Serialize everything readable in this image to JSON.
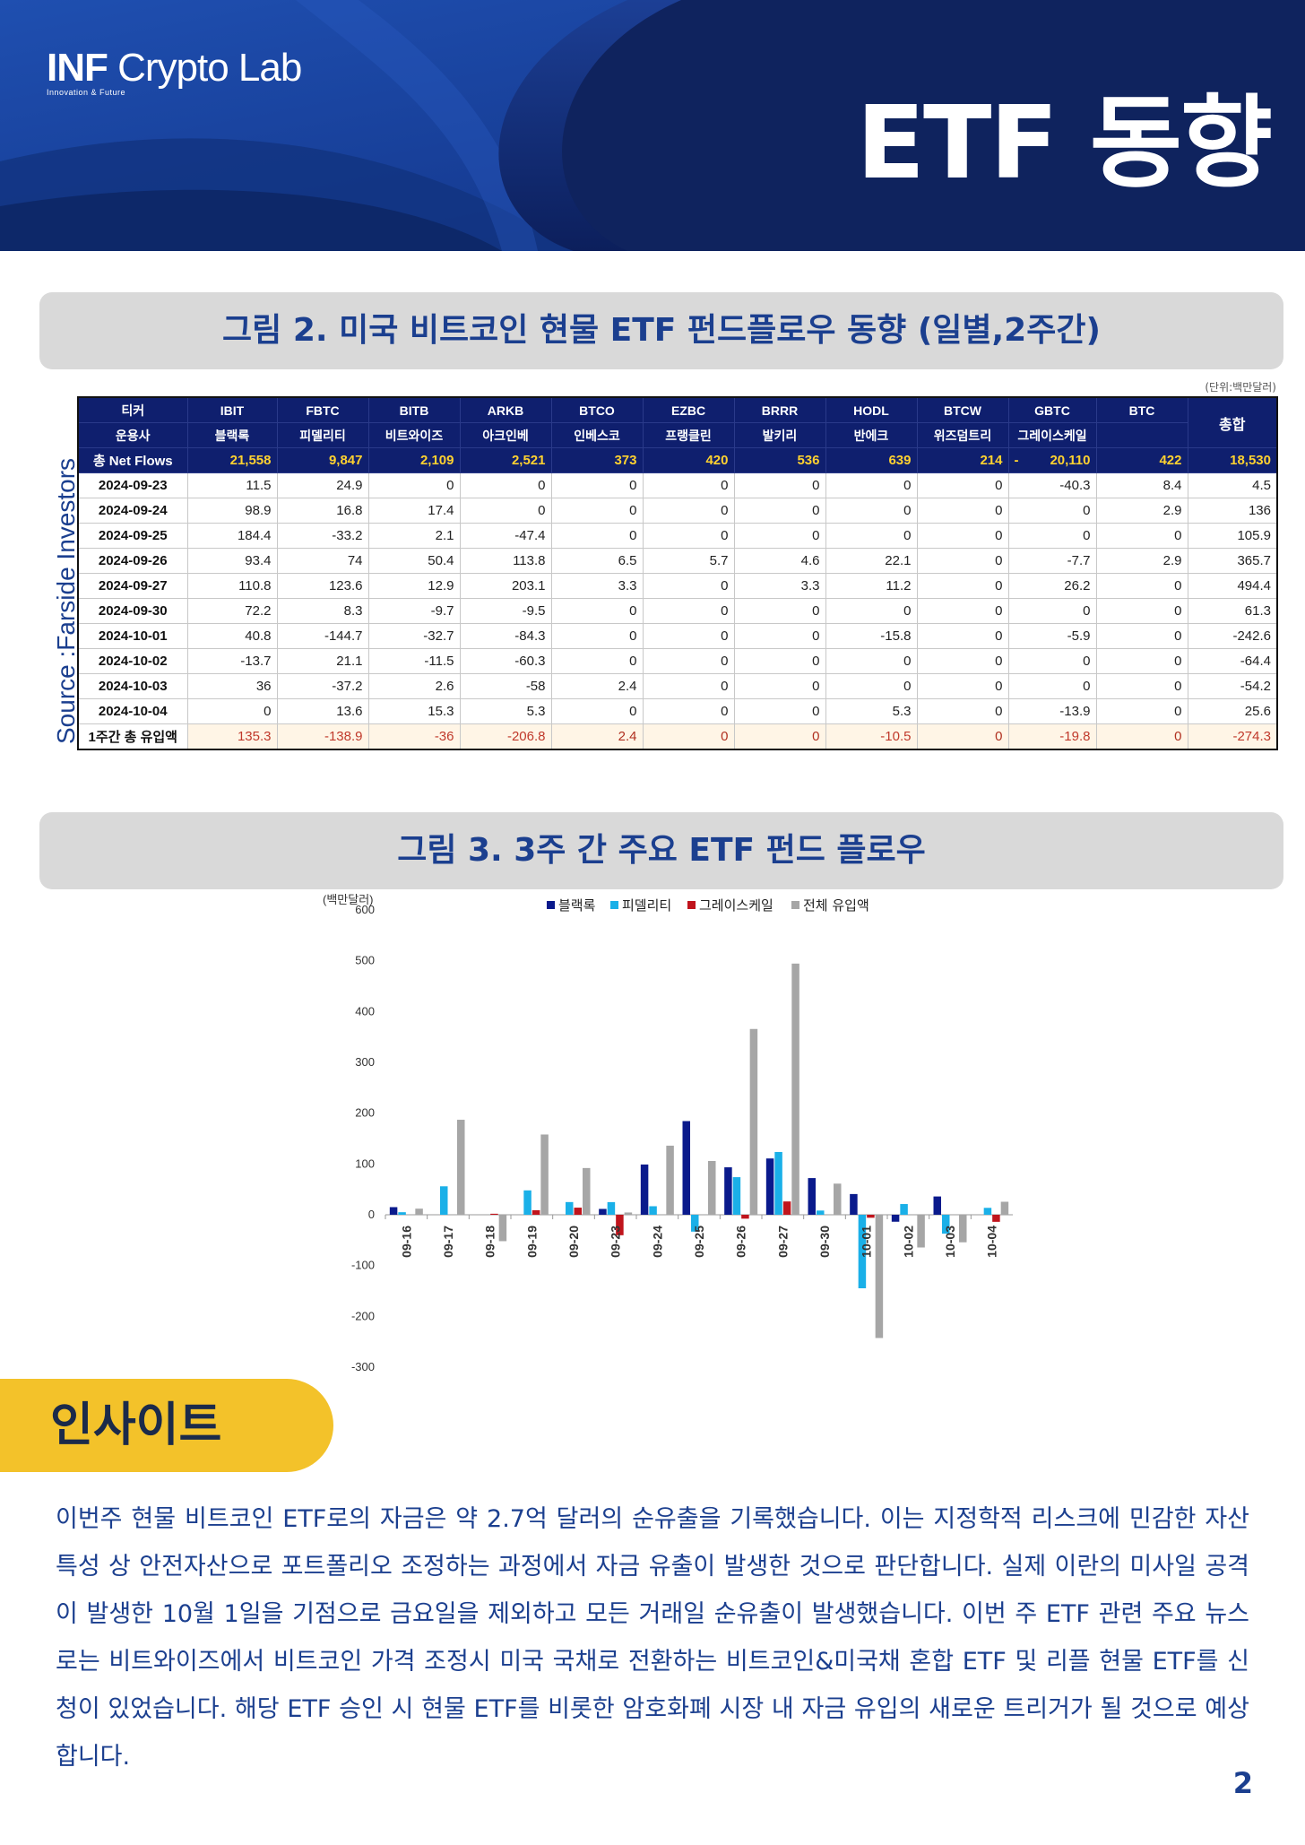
{
  "header": {
    "logo_main_a": "INF",
    "logo_main_b": " Crypto Lab",
    "logo_sub": "Innovation & Future",
    "title": "ETF 동향"
  },
  "figure2": {
    "caption": "그림 2.  미국 비트코인 현물 ETF 펀드플로우 동향 (일별,2주간)",
    "unit_note": "(단위:백만달러)",
    "source": "Source :Farside Investors",
    "ticker_label": "티커",
    "manager_label": "운용사",
    "net_flows_label": "총 Net Flows",
    "total_label": "총합",
    "week_label": "1주간 총 유입액",
    "tickers": [
      "IBIT",
      "FBTC",
      "BITB",
      "ARKB",
      "BTCO",
      "EZBC",
      "BRRR",
      "HODL",
      "BTCW",
      "GBTC",
      "BTC"
    ],
    "managers": [
      "블랙록",
      "피델리티",
      "비트와이즈",
      "아크인베",
      "인베스코",
      "프랭클린",
      "발키리",
      "반에크",
      "위즈덤트리",
      "그레이스케일",
      ""
    ],
    "net_flows": [
      "21,558",
      "9,847",
      "2,109",
      "2,521",
      "373",
      "420",
      "536",
      "639",
      "214",
      "-",
      "20,110",
      "422",
      "18,530"
    ],
    "rows": [
      {
        "date": "2024-09-23",
        "values": [
          "11.5",
          "24.9",
          "0",
          "0",
          "0",
          "0",
          "0",
          "0",
          "0",
          "-40.3",
          "8.4",
          "4.5"
        ]
      },
      {
        "date": "2024-09-24",
        "values": [
          "98.9",
          "16.8",
          "17.4",
          "0",
          "0",
          "0",
          "0",
          "0",
          "0",
          "0",
          "2.9",
          "136"
        ]
      },
      {
        "date": "2024-09-25",
        "values": [
          "184.4",
          "-33.2",
          "2.1",
          "-47.4",
          "0",
          "0",
          "0",
          "0",
          "0",
          "0",
          "0",
          "105.9"
        ]
      },
      {
        "date": "2024-09-26",
        "values": [
          "93.4",
          "74",
          "50.4",
          "113.8",
          "6.5",
          "5.7",
          "4.6",
          "22.1",
          "0",
          "-7.7",
          "2.9",
          "365.7"
        ]
      },
      {
        "date": "2024-09-27",
        "values": [
          "110.8",
          "123.6",
          "12.9",
          "203.1",
          "3.3",
          "0",
          "3.3",
          "11.2",
          "0",
          "26.2",
          "0",
          "494.4"
        ]
      },
      {
        "date": "2024-09-30",
        "values": [
          "72.2",
          "8.3",
          "-9.7",
          "-9.5",
          "0",
          "0",
          "0",
          "0",
          "0",
          "0",
          "0",
          "61.3"
        ]
      },
      {
        "date": "2024-10-01",
        "values": [
          "40.8",
          "-144.7",
          "-32.7",
          "-84.3",
          "0",
          "0",
          "0",
          "-15.8",
          "0",
          "-5.9",
          "0",
          "-242.6"
        ]
      },
      {
        "date": "2024-10-02",
        "values": [
          "-13.7",
          "21.1",
          "-11.5",
          "-60.3",
          "0",
          "0",
          "0",
          "0",
          "0",
          "0",
          "0",
          "-64.4"
        ]
      },
      {
        "date": "2024-10-03",
        "values": [
          "36",
          "-37.2",
          "2.6",
          "-58",
          "2.4",
          "0",
          "0",
          "0",
          "0",
          "0",
          "0",
          "-54.2"
        ]
      },
      {
        "date": "2024-10-04",
        "values": [
          "0",
          "13.6",
          "15.3",
          "5.3",
          "0",
          "0",
          "0",
          "5.3",
          "0",
          "-13.9",
          "0",
          "25.6"
        ]
      }
    ],
    "week_totals": [
      "135.3",
      "-138.9",
      "-36",
      "-206.8",
      "2.4",
      "0",
      "0",
      "-10.5",
      "0",
      "-19.8",
      "0",
      "-274.3"
    ]
  },
  "figure3": {
    "caption": "그림 3.  3주 간 주요 ETF 펀드 플로우"
  },
  "chart_data": {
    "type": "bar",
    "ylabel": "(백만달러)",
    "ylim": [
      -300,
      600
    ],
    "yticks": [
      -300,
      -200,
      -100,
      0,
      100,
      200,
      300,
      400,
      500,
      600
    ],
    "legend_position": "top",
    "categories": [
      "09-16",
      "09-17",
      "09-18",
      "09-19",
      "09-20",
      "09-23",
      "09-24",
      "09-25",
      "09-26",
      "09-27",
      "09-30",
      "10-01",
      "10-02",
      "10-03",
      "10-04"
    ],
    "series": [
      {
        "name": "블랙록",
        "color": "#0a1a8c",
        "values": [
          15,
          0,
          0,
          0,
          0,
          11.5,
          98.9,
          184.4,
          93.4,
          110.8,
          72.2,
          40.8,
          -13.7,
          36,
          0
        ]
      },
      {
        "name": "피델리티",
        "color": "#1ab0e8",
        "values": [
          5,
          56,
          0,
          48,
          25,
          24.9,
          16.8,
          -33.2,
          74,
          123.6,
          8.3,
          -144.7,
          21.1,
          -37.2,
          13.6
        ]
      },
      {
        "name": "그레이스케일",
        "color": "#c0141c",
        "values": [
          0,
          0,
          2,
          9,
          14,
          -40.3,
          0,
          0,
          -7.7,
          26.2,
          0,
          -5.9,
          0,
          0,
          -13.9
        ]
      },
      {
        "name": "전체 유입액",
        "color": "#a6a6a6",
        "values": [
          12,
          187,
          -52,
          158,
          92,
          4.5,
          136,
          105.9,
          365.7,
          494.4,
          61.3,
          -242.6,
          -64.4,
          -54.2,
          25.6
        ]
      }
    ]
  },
  "insight": {
    "tag": "인사이트",
    "body": "이번주 현물 비트코인 ETF로의 자금은 약 2.7억 달러의 순유출을 기록했습니다. 이는 지정학적 리스크에 민감한 자산 특성 상 안전자산으로 포트폴리오 조정하는 과정에서 자금 유출이 발생한 것으로 판단합니다. 실제 이란의 미사일 공격이 발생한 10월 1일을 기점으로 금요일을 제외하고 모든 거래일 순유출이 발생했습니다.  이번 주 ETF 관련 주요 뉴스로는 비트와이즈에서 비트코인 가격 조정시 미국 국채로 전환하는 비트코인&미국채 혼합 ETF 및 리플 현물 ETF를 신청이 있었습니다. 해당 ETF 승인 시 현물 ETF를 비롯한 암호화폐 시장 내 자금 유입의 새로운 트리거가 될 것으로 예상합니다."
  },
  "page_number": "2"
}
